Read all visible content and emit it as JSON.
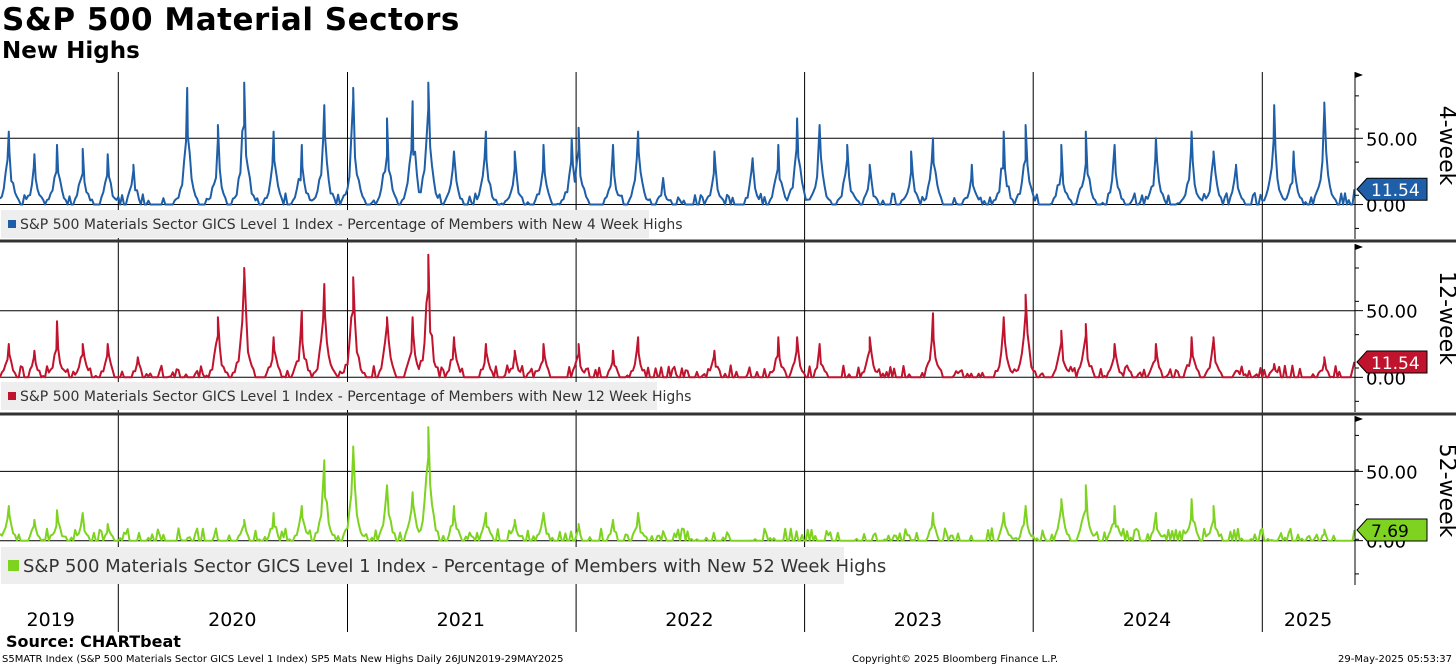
{
  "header": {
    "title": "S&P 500 Material Sectors",
    "subtitle": "New Highs"
  },
  "footer": {
    "source": "Source: CHARTbeat",
    "ticker_info": "S5MATR Index (S&P 500 Materials Sector GICS Level 1 Index) SP5 Mats New Highs  Daily 26JUN2019-29MAY2025",
    "copyright": "Copyright© 2025 Bloomberg Finance L.P.",
    "timestamp": "29-May-2025 05:53:37"
  },
  "chart_data": {
    "type": "line",
    "x_range": [
      "2019-06-26",
      "2025-05-29"
    ],
    "x_ticks": [
      {
        "label": "2019",
        "date": "2019-09-15"
      },
      {
        "label": "2020",
        "date": "2020-07-01"
      },
      {
        "label": "2021",
        "date": "2021-07-01"
      },
      {
        "label": "2022",
        "date": "2022-07-01"
      },
      {
        "label": "2023",
        "date": "2023-07-01"
      },
      {
        "label": "2024",
        "date": "2024-07-01"
      },
      {
        "label": "2025",
        "date": "2025-03-15"
      }
    ],
    "x_gridlines": [
      "2020-01-01",
      "2021-01-01",
      "2022-01-01",
      "2023-01-01",
      "2024-01-01",
      "2025-01-01"
    ],
    "panels": [
      {
        "name": "4-week",
        "axis_label": "4-week",
        "legend": "S&P 500 Materials Sector GICS Level 1 Index - Percentage of Members with New 4 Week Highs",
        "color": "#1f5fa8",
        "ylim": [
          -26,
          100
        ],
        "yticks": [
          "0.00",
          "50.00"
        ],
        "last_value": 11.54,
        "last_label": "11.54",
        "peaks": [
          {
            "date": "2019-07-10",
            "value": 55
          },
          {
            "date": "2019-08-20",
            "value": 38
          },
          {
            "date": "2019-09-25",
            "value": 45
          },
          {
            "date": "2019-11-05",
            "value": 42
          },
          {
            "date": "2019-12-15",
            "value": 38
          },
          {
            "date": "2020-01-25",
            "value": 30
          },
          {
            "date": "2020-04-20",
            "value": 88
          },
          {
            "date": "2020-06-08",
            "value": 60
          },
          {
            "date": "2020-07-20",
            "value": 92
          },
          {
            "date": "2020-09-05",
            "value": 55
          },
          {
            "date": "2020-10-20",
            "value": 45
          },
          {
            "date": "2020-11-25",
            "value": 75
          },
          {
            "date": "2021-01-10",
            "value": 88
          },
          {
            "date": "2021-03-05",
            "value": 65
          },
          {
            "date": "2021-04-15",
            "value": 78
          },
          {
            "date": "2021-05-10",
            "value": 92
          },
          {
            "date": "2021-06-20",
            "value": 40
          },
          {
            "date": "2021-08-10",
            "value": 55
          },
          {
            "date": "2021-09-25",
            "value": 40
          },
          {
            "date": "2021-11-10",
            "value": 45
          },
          {
            "date": "2021-12-25",
            "value": 50
          },
          {
            "date": "2022-01-05",
            "value": 58
          },
          {
            "date": "2022-03-01",
            "value": 45
          },
          {
            "date": "2022-04-10",
            "value": 55
          },
          {
            "date": "2022-05-20",
            "value": 20
          },
          {
            "date": "2022-08-10",
            "value": 40
          },
          {
            "date": "2022-10-10",
            "value": 35
          },
          {
            "date": "2022-11-20",
            "value": 45
          },
          {
            "date": "2022-12-20",
            "value": 65
          },
          {
            "date": "2023-01-25",
            "value": 60
          },
          {
            "date": "2023-03-10",
            "value": 45
          },
          {
            "date": "2023-04-15",
            "value": 30
          },
          {
            "date": "2023-06-20",
            "value": 40
          },
          {
            "date": "2023-07-25",
            "value": 50
          },
          {
            "date": "2023-09-25",
            "value": 30
          },
          {
            "date": "2023-11-15",
            "value": 55
          },
          {
            "date": "2023-12-20",
            "value": 60
          },
          {
            "date": "2024-02-15",
            "value": 45
          },
          {
            "date": "2024-03-25",
            "value": 55
          },
          {
            "date": "2024-05-10",
            "value": 45
          },
          {
            "date": "2024-07-15",
            "value": 50
          },
          {
            "date": "2024-09-10",
            "value": 55
          },
          {
            "date": "2024-10-15",
            "value": 40
          },
          {
            "date": "2024-11-20",
            "value": 30
          },
          {
            "date": "2025-01-20",
            "value": 75
          },
          {
            "date": "2025-02-20",
            "value": 40
          },
          {
            "date": "2025-04-10",
            "value": 77
          }
        ]
      },
      {
        "name": "12-week",
        "axis_label": "12-week",
        "legend": "S&P 500 Materials Sector GICS Level 1 Index - Percentage of Members with New 12 Week Highs",
        "color": "#c0142e",
        "ylim": [
          -26,
          100
        ],
        "yticks": [
          "0.00",
          "50.00"
        ],
        "last_value": 11.54,
        "last_label": "11.54",
        "peaks": [
          {
            "date": "2019-07-10",
            "value": 25
          },
          {
            "date": "2019-08-20",
            "value": 20
          },
          {
            "date": "2019-09-25",
            "value": 42
          },
          {
            "date": "2019-11-05",
            "value": 25
          },
          {
            "date": "2019-12-15",
            "value": 25
          },
          {
            "date": "2020-02-01",
            "value": 15
          },
          {
            "date": "2020-06-08",
            "value": 45
          },
          {
            "date": "2020-07-20",
            "value": 82
          },
          {
            "date": "2020-09-05",
            "value": 30
          },
          {
            "date": "2020-10-20",
            "value": 50
          },
          {
            "date": "2020-11-25",
            "value": 70
          },
          {
            "date": "2021-01-10",
            "value": 75
          },
          {
            "date": "2021-03-05",
            "value": 45
          },
          {
            "date": "2021-04-15",
            "value": 45
          },
          {
            "date": "2021-05-10",
            "value": 92
          },
          {
            "date": "2021-06-20",
            "value": 30
          },
          {
            "date": "2021-08-10",
            "value": 25
          },
          {
            "date": "2021-09-25",
            "value": 20
          },
          {
            "date": "2021-11-10",
            "value": 25
          },
          {
            "date": "2022-01-05",
            "value": 25
          },
          {
            "date": "2022-03-01",
            "value": 20
          },
          {
            "date": "2022-04-10",
            "value": 30
          },
          {
            "date": "2022-08-10",
            "value": 20
          },
          {
            "date": "2022-11-20",
            "value": 30
          },
          {
            "date": "2022-12-20",
            "value": 30
          },
          {
            "date": "2023-01-25",
            "value": 25
          },
          {
            "date": "2023-04-15",
            "value": 30
          },
          {
            "date": "2023-07-25",
            "value": 48
          },
          {
            "date": "2023-11-15",
            "value": 45
          },
          {
            "date": "2023-12-20",
            "value": 62
          },
          {
            "date": "2024-02-15",
            "value": 35
          },
          {
            "date": "2024-03-25",
            "value": 40
          },
          {
            "date": "2024-05-10",
            "value": 25
          },
          {
            "date": "2024-07-15",
            "value": 25
          },
          {
            "date": "2024-09-10",
            "value": 30
          },
          {
            "date": "2024-10-15",
            "value": 30
          },
          {
            "date": "2025-01-20",
            "value": 10
          },
          {
            "date": "2025-04-10",
            "value": 15
          }
        ]
      },
      {
        "name": "52-week",
        "axis_label": "52-week",
        "legend": "S&P 500 Materials Sector GICS Level 1 Index - Percentage of Members with New 52 Week Highs",
        "color": "#7ed321",
        "ylim": [
          -32,
          90
        ],
        "yticks": [
          "0.00",
          "50.00"
        ],
        "last_value": 7.69,
        "last_label": "7.69",
        "peaks": [
          {
            "date": "2019-07-10",
            "value": 25
          },
          {
            "date": "2019-08-20",
            "value": 15
          },
          {
            "date": "2019-09-25",
            "value": 22
          },
          {
            "date": "2019-11-05",
            "value": 20
          },
          {
            "date": "2019-12-15",
            "value": 12
          },
          {
            "date": "2020-07-20",
            "value": 15
          },
          {
            "date": "2020-09-05",
            "value": 20
          },
          {
            "date": "2020-10-20",
            "value": 25
          },
          {
            "date": "2020-11-25",
            "value": 58
          },
          {
            "date": "2021-01-10",
            "value": 68
          },
          {
            "date": "2021-03-05",
            "value": 40
          },
          {
            "date": "2021-04-15",
            "value": 35
          },
          {
            "date": "2021-05-10",
            "value": 82
          },
          {
            "date": "2021-06-20",
            "value": 25
          },
          {
            "date": "2021-08-10",
            "value": 20
          },
          {
            "date": "2021-09-25",
            "value": 15
          },
          {
            "date": "2021-11-10",
            "value": 20
          },
          {
            "date": "2022-01-05",
            "value": 12
          },
          {
            "date": "2022-03-01",
            "value": 15
          },
          {
            "date": "2022-04-10",
            "value": 20
          },
          {
            "date": "2023-07-25",
            "value": 20
          },
          {
            "date": "2023-11-15",
            "value": 20
          },
          {
            "date": "2023-12-20",
            "value": 25
          },
          {
            "date": "2024-02-15",
            "value": 30
          },
          {
            "date": "2024-03-25",
            "value": 40
          },
          {
            "date": "2024-05-10",
            "value": 25
          },
          {
            "date": "2024-07-15",
            "value": 20
          },
          {
            "date": "2024-09-10",
            "value": 30
          },
          {
            "date": "2024-10-15",
            "value": 25
          },
          {
            "date": "2025-04-10",
            "value": 8
          }
        ]
      }
    ]
  }
}
